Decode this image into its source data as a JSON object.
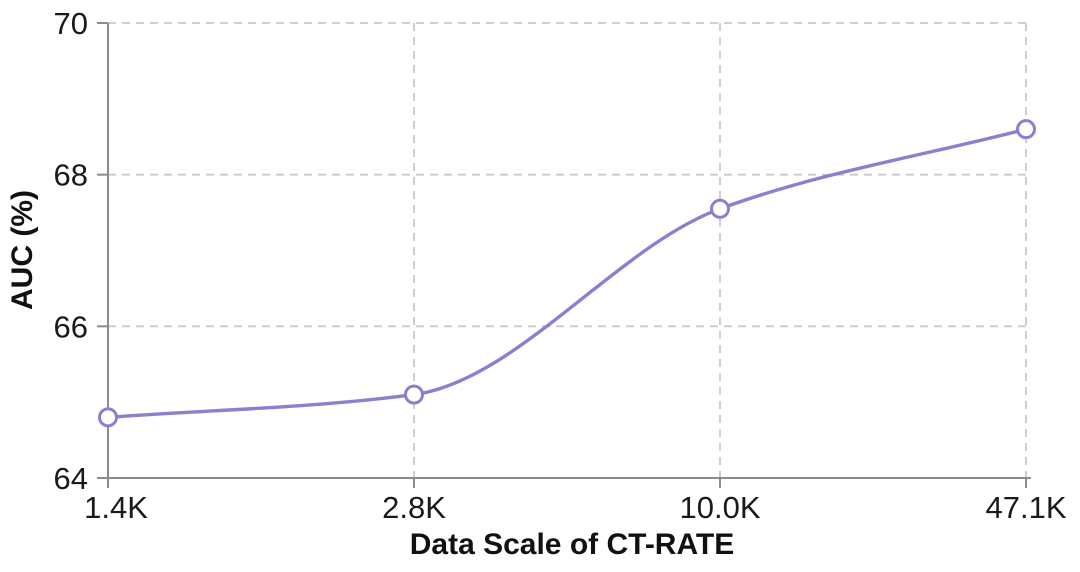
{
  "chart_data": {
    "type": "line",
    "title": "",
    "xlabel": "Data Scale of CT-RATE",
    "ylabel": "AUC (%)",
    "categories": [
      "1.4K",
      "2.8K",
      "10.0K",
      "47.1K"
    ],
    "series": [
      {
        "name": "AUC",
        "values": [
          64.8,
          65.1,
          67.55,
          68.6
        ]
      }
    ],
    "ylim": [
      64,
      70
    ],
    "yticks": [
      64,
      66,
      68,
      70
    ],
    "ytick_labels": [
      "64",
      "66",
      "68",
      "70"
    ],
    "grid": "dashed",
    "legend": "none",
    "marker": "open-circle",
    "colors": {
      "line": "#8a80d0",
      "marker_fill": "#ffffff",
      "grid": "#c9c9c9",
      "axis": "#8c8c8c",
      "text": "#1a1a1a"
    }
  }
}
